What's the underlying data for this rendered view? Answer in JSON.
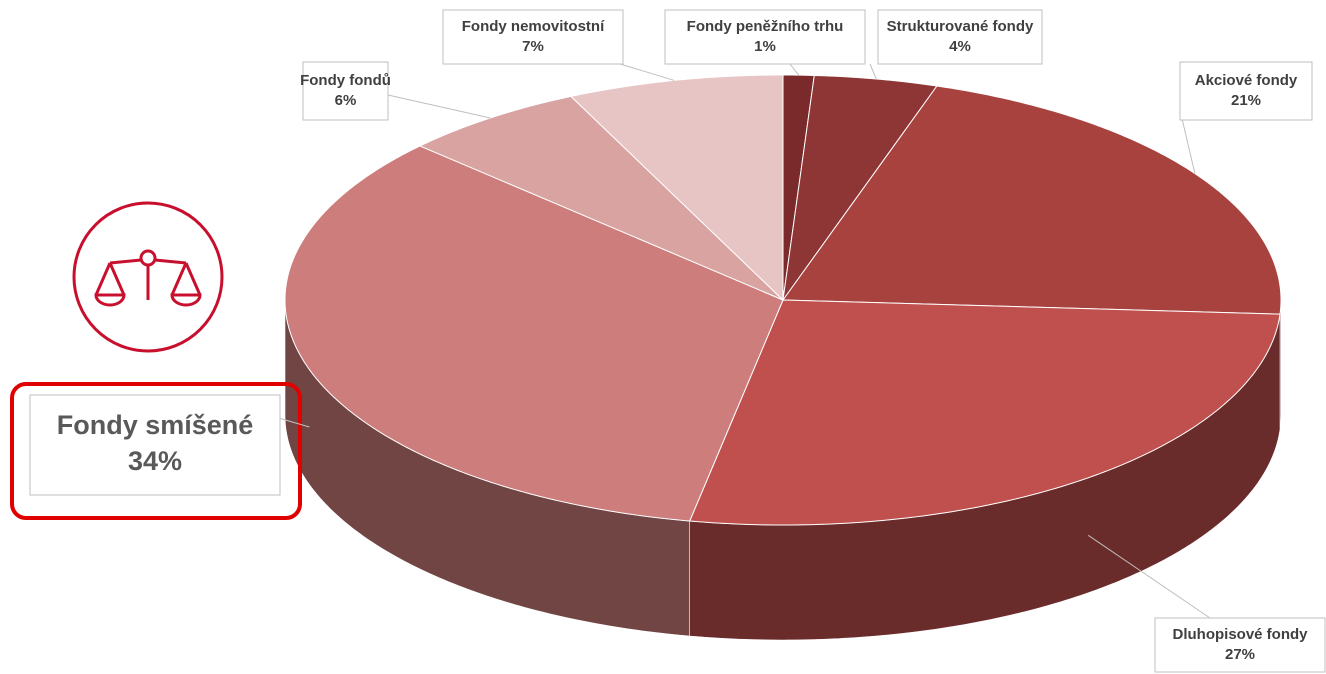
{
  "chart_data": {
    "type": "pie",
    "categories": [
      "Fondy peněžního trhu",
      "Strukturované fondy",
      "Akciové fondy",
      "Dluhopisové fondy",
      "Fondy smíšené",
      "Fondy fondů",
      "Fondy nemovitostní"
    ],
    "values": [
      1,
      4,
      21,
      27,
      34,
      6,
      7
    ],
    "value_labels": [
      "1%",
      "4%",
      "21%",
      "27%",
      "34%",
      "6%",
      "7%"
    ],
    "colors": [
      "#7a2a2a",
      "#8e3535",
      "#a8423f",
      "#c0504d",
      "#cd7d7b",
      "#d9a3a2",
      "#e6c5c4"
    ]
  }
}
